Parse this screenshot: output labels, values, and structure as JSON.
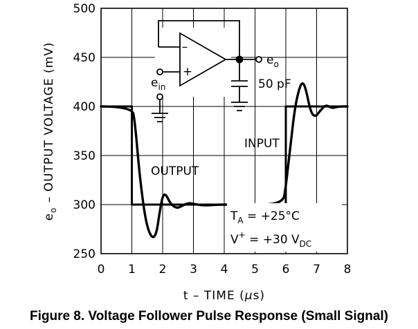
{
  "chart_data": {
    "type": "line",
    "caption": "Figure 8. Voltage Follower Pulse Response (Small Signal)",
    "xlabel": {
      "pre": "t – TIME (",
      "mu": "μ",
      "post": "s)"
    },
    "ylabel": {
      "e": "e",
      "sub": "o",
      "rest": " – OUTPUT VOLTAGE (mV)"
    },
    "xlim": [
      0,
      8
    ],
    "ylim": [
      250,
      500
    ],
    "xticks": [
      0,
      1,
      2,
      3,
      4,
      5,
      6,
      7,
      8
    ],
    "yticks": [
      250,
      300,
      350,
      400,
      450,
      500
    ],
    "grid": true,
    "series": [
      {
        "name": "INPUT",
        "style": "square",
        "x": [
          0,
          1,
          1,
          6,
          6,
          8
        ],
        "y": [
          400,
          400,
          300,
          300,
          400,
          400
        ]
      },
      {
        "name": "OUTPUT",
        "style": "ringing",
        "x": [
          0,
          1.0,
          1.1,
          1.25,
          1.45,
          1.65,
          1.8,
          1.9,
          2.0,
          2.1,
          2.25,
          2.45,
          2.65,
          2.85,
          3.1,
          3.4,
          3.8,
          4.5,
          5.9,
          6.0,
          6.15,
          6.3,
          6.45,
          6.55,
          6.65,
          6.8,
          6.95,
          7.1,
          7.3,
          7.5,
          7.7,
          8.0
        ],
        "y": [
          400,
          400,
          385,
          330,
          282,
          265,
          270,
          292,
          309,
          311,
          301,
          296,
          299,
          302,
          300,
          299,
          300,
          300,
          300,
          318,
          360,
          400,
          420,
          425,
          418,
          395,
          389,
          395,
          402,
          398,
          400,
          400
        ]
      }
    ],
    "annotations": {
      "input_label": "INPUT",
      "output_label": "OUTPUT",
      "ta": {
        "t": "T",
        "sub": "A",
        "rest": " = +25°C"
      },
      "vplus": {
        "v": "V",
        "sup": "+",
        "mid": " = +30 V",
        "sub": "DC"
      },
      "cap_label": "50 pF",
      "eo": {
        "e": "e",
        "sub": "o"
      },
      "ein": {
        "e": "e",
        "sub": "in"
      },
      "plus_sign": "+",
      "minus_sign": "–"
    }
  }
}
